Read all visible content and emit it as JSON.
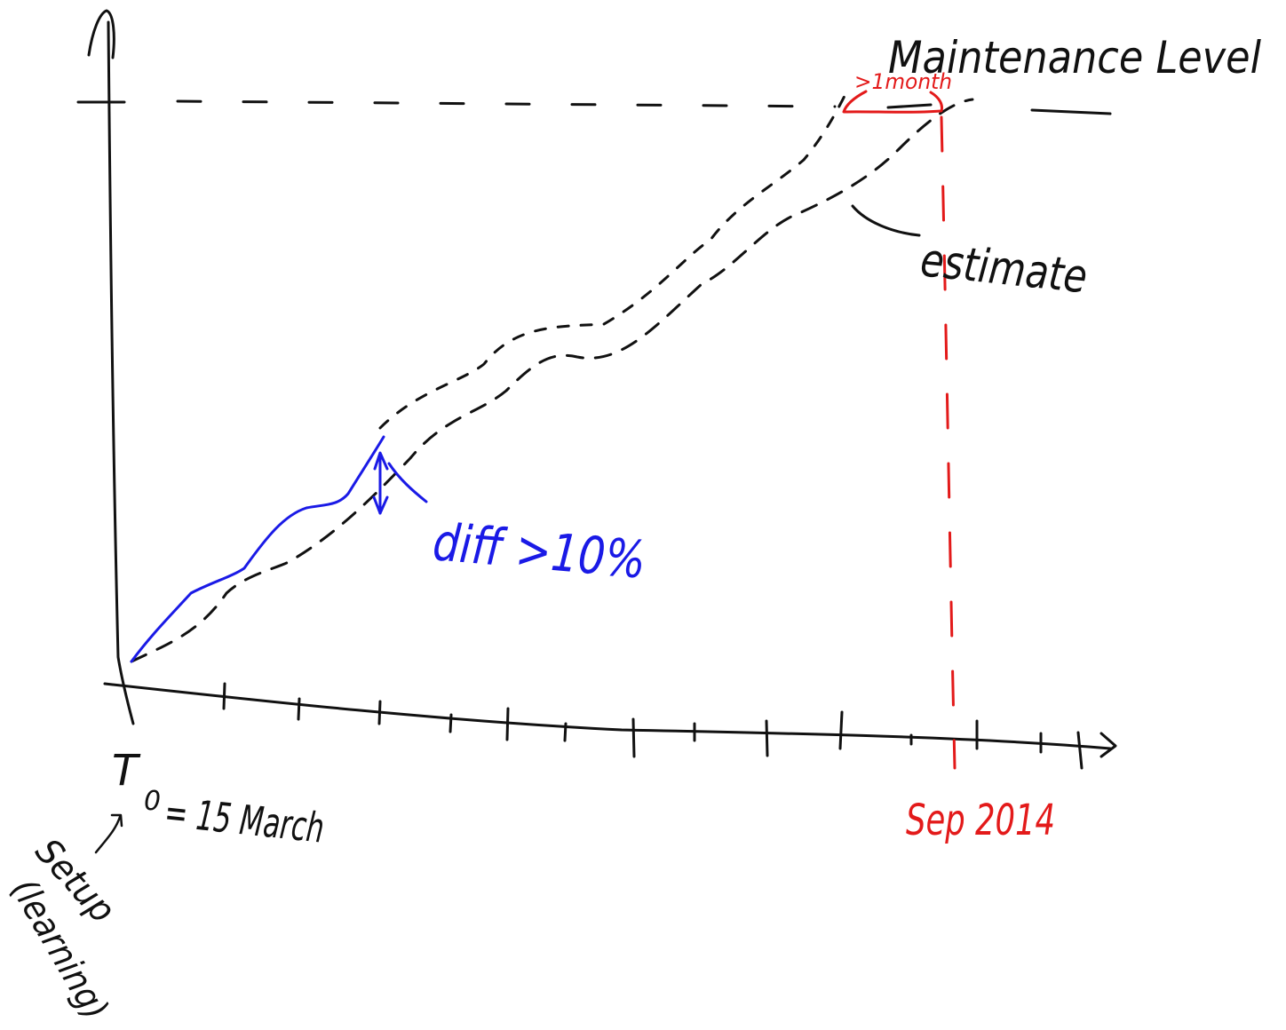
{
  "labels": {
    "maintenance_level": "Maintenance Level",
    "one_month": ">1month",
    "estimate": "estimate",
    "diff": "diff >10%",
    "t0": "T",
    "t0_subscript": "0",
    "t0_date": "= 15 March",
    "setup": "Setup",
    "learning": "(learning)",
    "sep_2014": "Sep 2014"
  },
  "colors": {
    "ink": "#111111",
    "actual": "#1a1ae6",
    "deadline": "#e31a1a"
  }
}
